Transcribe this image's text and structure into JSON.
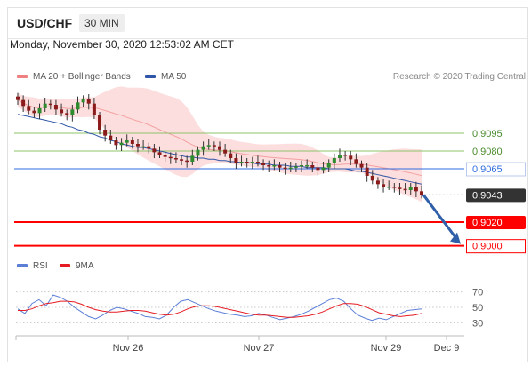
{
  "header": {
    "symbol": "USD/CHF",
    "timeframe": "30 MIN"
  },
  "datetime": "Monday, November 30, 2020 12:53:02 AM CET",
  "legend": {
    "bollinger": {
      "label": "MA 20 + Bollinger Bands",
      "color": "#f08080"
    },
    "ma50": {
      "label": "MA 50",
      "color": "#2f56a8"
    }
  },
  "research": "Research © 2020 Trading Central",
  "chart_data": {
    "type": "candlestick",
    "instrument": "USD/CHF",
    "timeframe": "30 MIN",
    "x_ticks": [
      "Nov 26",
      "Nov 27",
      "Nov 29",
      "Dec 9"
    ],
    "ylim": [
      0.899,
      0.9125
    ],
    "close_series": [
      0.9123,
      0.9118,
      0.9114,
      0.9112,
      0.9116,
      0.912,
      0.9119,
      0.9115,
      0.9112,
      0.911,
      0.9115,
      0.9121,
      0.9124,
      0.912,
      0.911,
      0.9098,
      0.9093,
      0.9089,
      0.9085,
      0.9087,
      0.9089,
      0.9086,
      0.9084,
      0.9084,
      0.9082,
      0.9079,
      0.9077,
      0.9075,
      0.9074,
      0.9073,
      0.9072,
      0.9071,
      0.9076,
      0.9081,
      0.9084,
      0.9085,
      0.9084,
      0.9081,
      0.9078,
      0.9074,
      0.907,
      0.9071,
      0.907,
      0.9071,
      0.907,
      0.9068,
      0.9067,
      0.9068,
      0.9066,
      0.9065,
      0.9066,
      0.9067,
      0.9068,
      0.9068,
      0.9066,
      0.9064,
      0.9066,
      0.907,
      0.9074,
      0.9077,
      0.9076,
      0.9073,
      0.9069,
      0.9066,
      0.9059,
      0.9055,
      0.9052,
      0.905,
      0.905,
      0.9049,
      0.9048,
      0.9047,
      0.905,
      0.9046,
      0.9043
    ],
    "ma50": [
      0.9111,
      0.911,
      0.9109,
      0.9108,
      0.9107,
      0.9106,
      0.9105,
      0.9104,
      0.9103,
      0.9101,
      0.91,
      0.9098,
      0.9097,
      0.9095,
      0.9094,
      0.9092,
      0.9091,
      0.9089,
      0.9088,
      0.9086,
      0.9085,
      0.9084,
      0.9083,
      0.9083,
      0.9082,
      0.9081,
      0.908,
      0.9079,
      0.9078,
      0.9077,
      0.9076,
      0.9075,
      0.9075,
      0.9074,
      0.9074,
      0.9073,
      0.9073,
      0.9072,
      0.9072,
      0.9071,
      0.9071,
      0.907,
      0.907,
      0.907,
      0.9069,
      0.9069,
      0.9069,
      0.9068,
      0.9068,
      0.9068,
      0.9067,
      0.9067,
      0.9067,
      0.9066,
      0.9066,
      0.9066,
      0.9066,
      0.9065,
      0.9065,
      0.9065,
      0.9065,
      0.9064,
      0.9063,
      0.9063,
      0.9062,
      0.9061,
      0.906,
      0.9059,
      0.9058,
      0.9057,
      0.9056,
      0.9055,
      0.9054,
      0.9053,
      0.9052
    ],
    "levels": [
      {
        "label": "0.9095",
        "value": 0.9095,
        "color": "#8ec46a",
        "text_color": "#4a8a2c",
        "weight": 1,
        "style": "plain"
      },
      {
        "label": "0.9080",
        "value": 0.908,
        "color": "#8ec46a",
        "text_color": "#4a8a2c",
        "weight": 1,
        "style": "plain"
      },
      {
        "label": "0.9065",
        "value": 0.9065,
        "color": "#2f6be0",
        "text_color": "#2f6be0",
        "weight": 1,
        "style": "plain"
      },
      {
        "label": "0.9043",
        "value": 0.9043,
        "color": "#555555",
        "text_color": "#ffffff",
        "weight": 1,
        "style": "current"
      },
      {
        "label": "0.9020",
        "value": 0.902,
        "color": "#ff0000",
        "text_color": "#ffffff",
        "weight": 2,
        "style": "badge"
      },
      {
        "label": "0.9000",
        "value": 0.9,
        "color": "#ff0000",
        "text_color": "#ff0000",
        "weight": 2,
        "style": "box"
      }
    ],
    "current_price": 0.9043,
    "forecast_arrow": {
      "from": 0.9043,
      "to": 0.9,
      "color": "#2f5fa8"
    },
    "rsi": {
      "legend": [
        {
          "label": "RSI",
          "color": "#5b7fd6"
        },
        {
          "label": "9MA",
          "color": "#e51c23"
        }
      ],
      "levels": [
        "70",
        "50",
        "30"
      ],
      "ylim": [
        20,
        80
      ],
      "rsi_values": [
        48,
        42,
        55,
        60,
        52,
        66,
        63,
        58,
        50,
        44,
        38,
        35,
        40,
        46,
        50,
        48,
        45,
        42,
        38,
        37,
        35,
        40,
        50,
        58,
        60,
        56,
        52,
        48,
        45,
        43,
        41,
        40,
        38,
        39,
        42,
        40,
        37,
        34,
        36,
        38,
        41,
        45,
        50,
        55,
        60,
        62,
        58,
        48,
        40,
        36,
        33,
        36,
        34,
        38,
        42,
        46,
        47,
        48
      ],
      "ma_values": [
        46,
        46,
        48,
        52,
        55,
        56,
        58,
        58,
        57,
        54,
        50,
        47,
        45,
        44,
        44,
        45,
        46,
        46,
        45,
        43,
        41,
        40,
        41,
        44,
        48,
        51,
        52,
        52,
        51,
        49,
        47,
        45,
        43,
        41,
        40,
        40,
        39,
        38,
        37,
        37,
        38,
        39,
        41,
        44,
        48,
        52,
        55,
        55,
        54,
        51,
        47,
        43,
        41,
        39,
        38,
        39,
        40,
        42
      ]
    }
  }
}
